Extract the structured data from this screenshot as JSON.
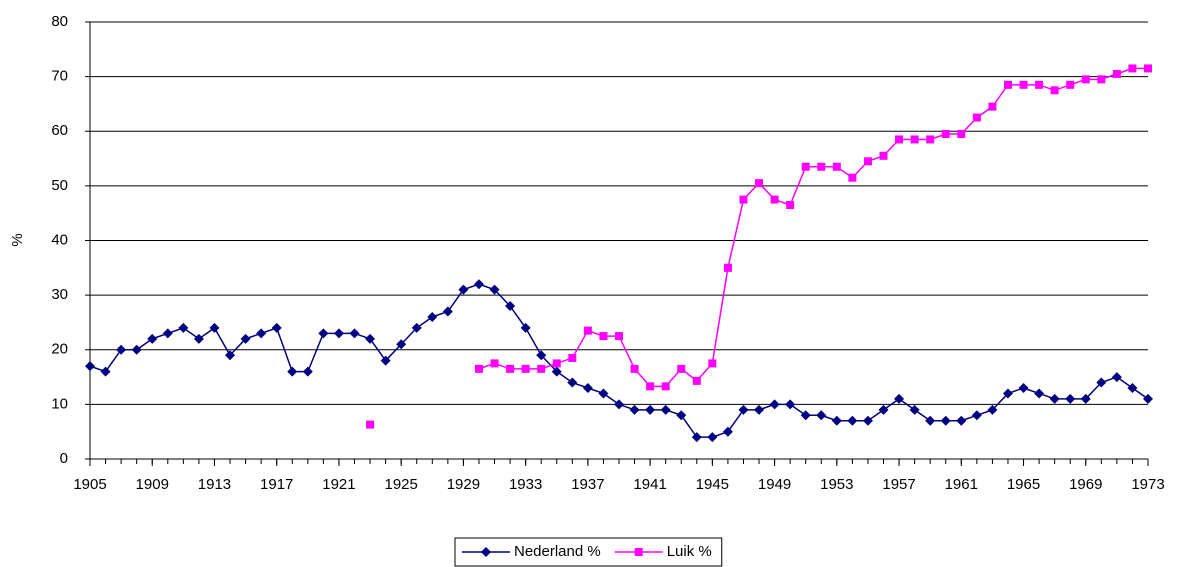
{
  "chart_data": {
    "type": "line",
    "y_label": "%",
    "x": [
      1905,
      1906,
      1907,
      1908,
      1909,
      1910,
      1911,
      1912,
      1913,
      1914,
      1915,
      1916,
      1917,
      1918,
      1919,
      1920,
      1921,
      1922,
      1923,
      1924,
      1925,
      1926,
      1927,
      1928,
      1929,
      1930,
      1931,
      1932,
      1933,
      1934,
      1935,
      1936,
      1937,
      1938,
      1939,
      1940,
      1941,
      1942,
      1943,
      1944,
      1945,
      1946,
      1947,
      1948,
      1949,
      1950,
      1951,
      1952,
      1953,
      1954,
      1955,
      1956,
      1957,
      1958,
      1959,
      1960,
      1961,
      1962,
      1963,
      1964,
      1965,
      1966,
      1967,
      1968,
      1969,
      1970,
      1971,
      1972,
      1973
    ],
    "series": [
      {
        "name": "Nederland %",
        "color": "#000080",
        "marker": "diamond",
        "values": [
          17,
          16,
          20,
          20,
          22,
          23,
          24,
          22,
          24,
          19,
          22,
          23,
          24,
          16,
          16,
          23,
          23,
          23,
          22,
          18,
          21,
          24,
          26,
          27,
          31,
          32,
          31,
          28,
          24,
          19,
          16,
          14,
          13,
          12,
          10,
          9,
          9,
          9,
          8,
          4,
          4,
          5,
          9,
          9,
          10,
          10,
          8,
          8,
          7,
          7,
          7,
          9,
          11,
          9,
          7,
          7,
          7,
          8,
          9,
          12,
          13,
          12,
          11,
          11,
          11,
          14,
          15,
          13,
          11
        ]
      },
      {
        "name": "Luik %",
        "color": "#ff00ff",
        "marker": "square",
        "values": [
          null,
          null,
          null,
          null,
          null,
          null,
          null,
          null,
          null,
          null,
          null,
          null,
          null,
          null,
          null,
          null,
          null,
          null,
          6.3,
          null,
          null,
          null,
          null,
          null,
          null,
          16.5,
          17.5,
          16.5,
          16.5,
          16.5,
          17.5,
          18.5,
          23.5,
          22.5,
          22.5,
          16.5,
          13.3,
          13.3,
          16.5,
          14.3,
          17.5,
          35,
          47.5,
          50.5,
          47.5,
          46.5,
          53.5,
          53.5,
          53.5,
          51.5,
          54.5,
          55.5,
          58.5,
          58.5,
          58.5,
          59.5,
          59.5,
          62.5,
          64.5,
          68.5,
          68.5,
          68.5,
          67.5,
          68.5,
          69.5,
          69.5,
          70.5,
          71.5,
          71.5
        ]
      }
    ],
    "xlim": [
      1905,
      1973
    ],
    "xticks": [
      1905,
      1909,
      1913,
      1917,
      1921,
      1925,
      1929,
      1933,
      1937,
      1941,
      1945,
      1949,
      1953,
      1957,
      1961,
      1965,
      1969,
      1973
    ],
    "ylim": [
      0,
      80
    ],
    "yticks": [
      0,
      10,
      20,
      30,
      40,
      50,
      60,
      70,
      80
    ],
    "grid": true,
    "legend": "bottom"
  }
}
